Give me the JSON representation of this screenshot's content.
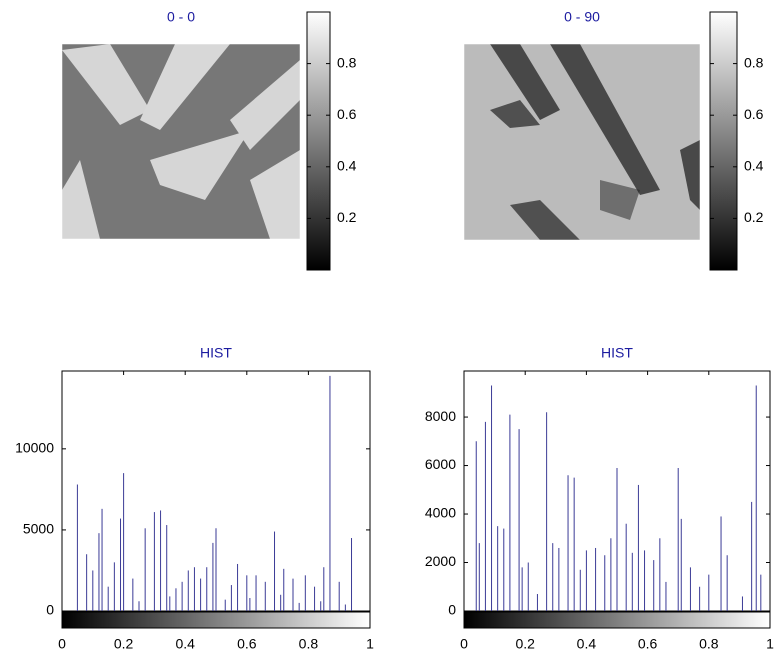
{
  "chart_data": [
    {
      "type": "image",
      "title": "0 - 0",
      "clim": [
        0,
        1
      ],
      "cticks": [
        0.2,
        0.4,
        0.6,
        0.8
      ]
    },
    {
      "type": "image",
      "title": "0 - 90",
      "clim": [
        0,
        1
      ],
      "cticks": [
        0.2,
        0.4,
        0.6,
        0.8
      ]
    },
    {
      "type": "stem",
      "title": "HIST",
      "color": "#3a3a96",
      "x": [
        0.05,
        0.08,
        0.1,
        0.12,
        0.13,
        0.15,
        0.17,
        0.19,
        0.2,
        0.23,
        0.25,
        0.27,
        0.3,
        0.32,
        0.34,
        0.35,
        0.37,
        0.39,
        0.41,
        0.43,
        0.45,
        0.47,
        0.49,
        0.5,
        0.53,
        0.55,
        0.57,
        0.6,
        0.61,
        0.63,
        0.66,
        0.69,
        0.71,
        0.72,
        0.75,
        0.77,
        0.79,
        0.82,
        0.84,
        0.85,
        0.87,
        0.9,
        0.92,
        0.94
      ],
      "values": [
        7800,
        3500,
        2500,
        4800,
        6300,
        1500,
        3000,
        5700,
        8500,
        2000,
        600,
        5100,
        6100,
        6200,
        5300,
        900,
        1400,
        1800,
        2500,
        2700,
        2000,
        2700,
        4200,
        5100,
        700,
        1600,
        2900,
        2200,
        800,
        2200,
        1800,
        4900,
        1000,
        2600,
        2000,
        500,
        2200,
        1500,
        600,
        2700,
        14500,
        1800,
        400,
        4500
      ],
      "xlim": [
        0,
        1
      ],
      "xticks": [
        0,
        0.2,
        0.4,
        0.6,
        0.8,
        1
      ],
      "ylim": [
        0,
        14800
      ],
      "yticks": [
        0,
        5000,
        10000
      ]
    },
    {
      "type": "stem",
      "title": "HIST",
      "color": "#3a3a96",
      "x": [
        0.04,
        0.05,
        0.07,
        0.09,
        0.11,
        0.13,
        0.15,
        0.18,
        0.19,
        0.21,
        0.24,
        0.27,
        0.29,
        0.31,
        0.34,
        0.36,
        0.38,
        0.4,
        0.43,
        0.46,
        0.48,
        0.5,
        0.53,
        0.55,
        0.57,
        0.59,
        0.62,
        0.64,
        0.66,
        0.7,
        0.71,
        0.74,
        0.77,
        0.8,
        0.84,
        0.86,
        0.91,
        0.94,
        0.955,
        0.97
      ],
      "values": [
        7000,
        2800,
        7800,
        9300,
        3500,
        3400,
        8100,
        7500,
        1800,
        2000,
        700,
        8200,
        2800,
        2600,
        5600,
        5500,
        1700,
        2500,
        2600,
        2300,
        3000,
        5900,
        3600,
        2400,
        5200,
        2500,
        2100,
        3000,
        1200,
        5900,
        3800,
        1800,
        1000,
        1500,
        3900,
        2300,
        600,
        4500,
        9300,
        1500
      ],
      "xlim": [
        0,
        1
      ],
      "xticks": [
        0,
        0.2,
        0.4,
        0.6,
        0.8,
        1
      ],
      "ylim": [
        0,
        9900
      ],
      "yticks": [
        0,
        2000,
        4000,
        6000,
        8000
      ]
    }
  ]
}
